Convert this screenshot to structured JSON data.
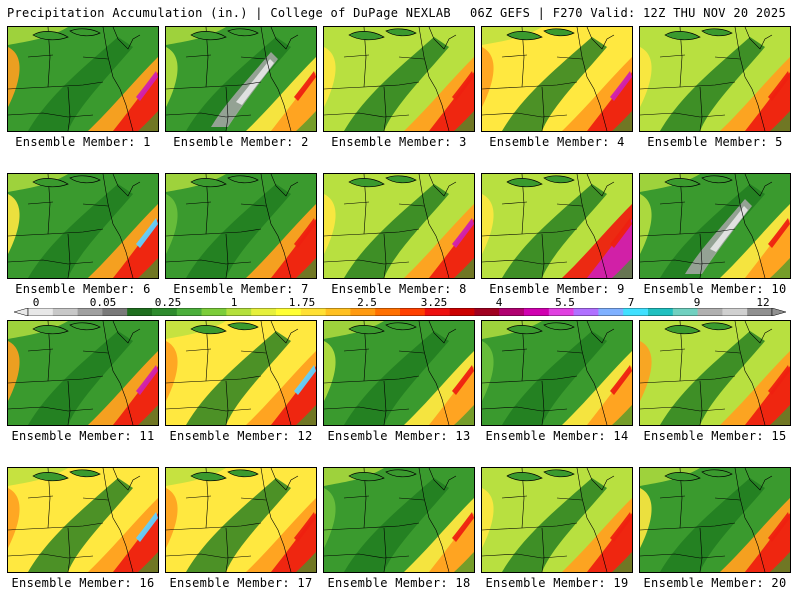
{
  "header": {
    "left_title": "Precipitation Accumulation (in.) | College of DuPage NEXLAB",
    "right_title": "06Z GEFS | F270 Valid: 12Z THU NOV 20 2025"
  },
  "panels": [
    {
      "label": "Ensemble Member: 1"
    },
    {
      "label": "Ensemble Member: 2"
    },
    {
      "label": "Ensemble Member: 3"
    },
    {
      "label": "Ensemble Member: 4"
    },
    {
      "label": "Ensemble Member: 5"
    },
    {
      "label": "Ensemble Member: 6"
    },
    {
      "label": "Ensemble Member: 7"
    },
    {
      "label": "Ensemble Member: 8"
    },
    {
      "label": "Ensemble Member: 9"
    },
    {
      "label": "Ensemble Member: 10"
    },
    {
      "label": "Ensemble Member: 11"
    },
    {
      "label": "Ensemble Member: 12"
    },
    {
      "label": "Ensemble Member: 13"
    },
    {
      "label": "Ensemble Member: 14"
    },
    {
      "label": "Ensemble Member: 15"
    },
    {
      "label": "Ensemble Member: 16"
    },
    {
      "label": "Ensemble Member: 17"
    },
    {
      "label": "Ensemble Member: 18"
    },
    {
      "label": "Ensemble Member: 19"
    },
    {
      "label": "Ensemble Member: 20"
    }
  ],
  "colorbar": {
    "tick_labels": [
      "0",
      "0.05",
      "0.25",
      "1",
      "1.75",
      "2.5",
      "3.25",
      "4",
      "5.5",
      "7",
      "9",
      "12"
    ],
    "colors": [
      "#e8e8e8",
      "#c8c8c8",
      "#a0a0a0",
      "#7a7a7a",
      "#1f6f1f",
      "#2e8b2e",
      "#4caf3c",
      "#7ccd3a",
      "#b4e03c",
      "#e6f03c",
      "#ffff33",
      "#ffe033",
      "#ffc020",
      "#ff9a10",
      "#ff7000",
      "#ff4000",
      "#ee1010",
      "#cc0000",
      "#a00020",
      "#b00070",
      "#d000b0",
      "#e040e0",
      "#b070ff",
      "#7fb0ff",
      "#40e0ff",
      "#20c0c0",
      "#70d0c0",
      "#b0b0b0",
      "#d0d0d0",
      "#909090"
    ]
  },
  "palette": {
    "dark_green": "#1f7a1f",
    "green": "#3a9a2e",
    "light_green": "#6cc03c",
    "yellow_green": "#b8e040",
    "yellow": "#ffe840",
    "orange": "#ffa020",
    "red": "#ee2010",
    "magenta": "#d020b0",
    "cyan": "#60d0ff",
    "gray": "#a8a8a8",
    "white": "#e8e8e8"
  }
}
